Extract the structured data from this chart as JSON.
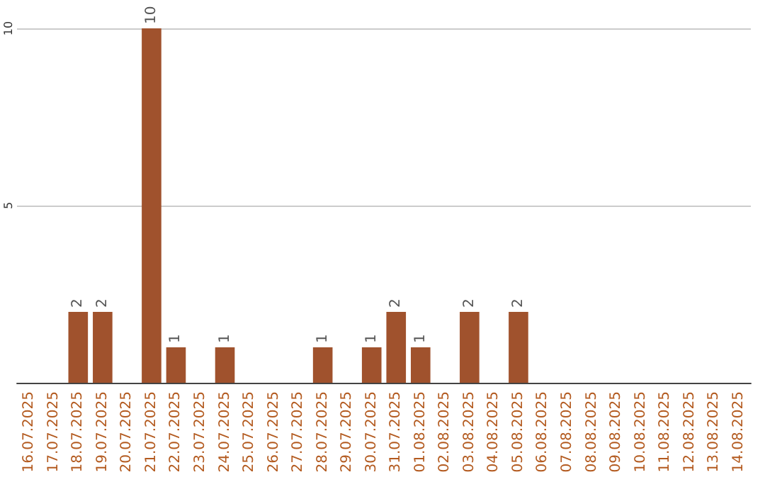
{
  "chart_data": {
    "type": "bar",
    "categories": [
      "16.07.2025",
      "17.07.2025",
      "18.07.2025",
      "19.07.2025",
      "20.07.2025",
      "21.07.2025",
      "22.07.2025",
      "23.07.2025",
      "24.07.2025",
      "25.07.2025",
      "26.07.2025",
      "27.07.2025",
      "28.07.2025",
      "29.07.2025",
      "30.07.2025",
      "31.07.2025",
      "01.08.2025",
      "02.08.2025",
      "03.08.2025",
      "04.08.2025",
      "05.08.2025",
      "06.08.2025",
      "07.08.2025",
      "08.08.2025",
      "09.08.2025",
      "10.08.2025",
      "11.08.2025",
      "12.08.2025",
      "13.08.2025",
      "14.08.2025"
    ],
    "values": [
      0,
      0,
      2,
      2,
      0,
      10,
      1,
      0,
      1,
      0,
      0,
      0,
      1,
      0,
      1,
      2,
      1,
      0,
      2,
      0,
      2,
      0,
      0,
      0,
      0,
      0,
      0,
      0,
      0,
      0
    ],
    "value_labels": [
      null,
      null,
      "2",
      "2",
      null,
      "10",
      "1",
      null,
      "1",
      null,
      null,
      null,
      "1",
      null,
      "1",
      "2",
      "1",
      null,
      "2",
      null,
      "2",
      null,
      null,
      null,
      null,
      null,
      null,
      null,
      null,
      null
    ],
    "color": "#a0522d",
    "ylim": [
      0,
      10
    ],
    "yticks": [
      {
        "value": 0,
        "label": null
      },
      5,
      10
    ],
    "grid": "y"
  }
}
